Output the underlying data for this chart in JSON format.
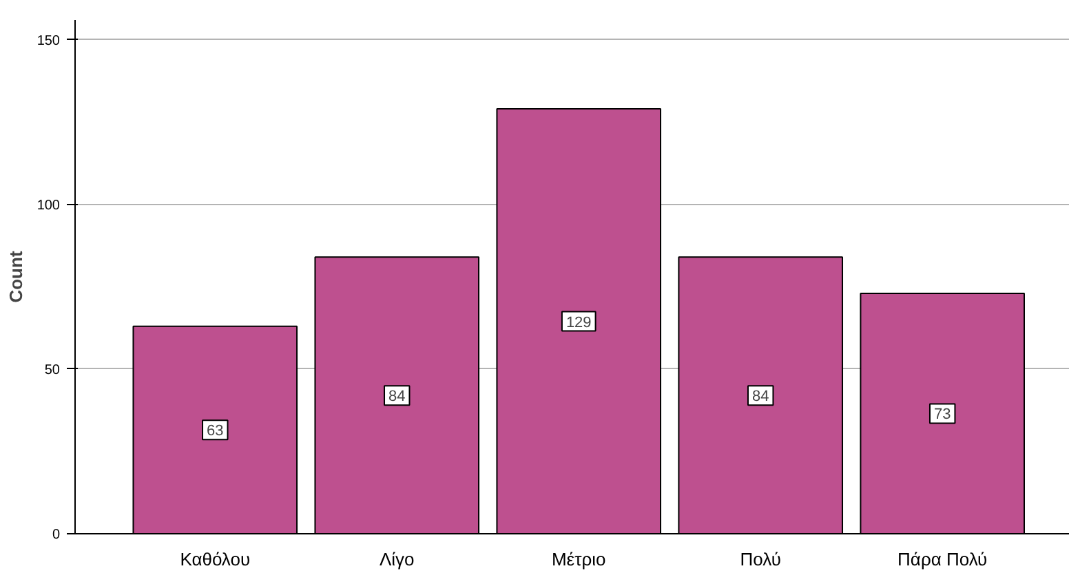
{
  "chart_data": {
    "type": "bar",
    "ylabel": "Count",
    "categories": [
      "Καθόλου",
      "Λίγο",
      "Μέτριο",
      "Πολύ",
      "Πάρα Πολύ"
    ],
    "values": [
      63,
      84,
      129,
      84,
      73
    ],
    "color": "#be508f",
    "ylim": [
      0,
      156
    ],
    "yticks": [
      0,
      50,
      100,
      150
    ],
    "grid": "y",
    "data_labels": true
  }
}
